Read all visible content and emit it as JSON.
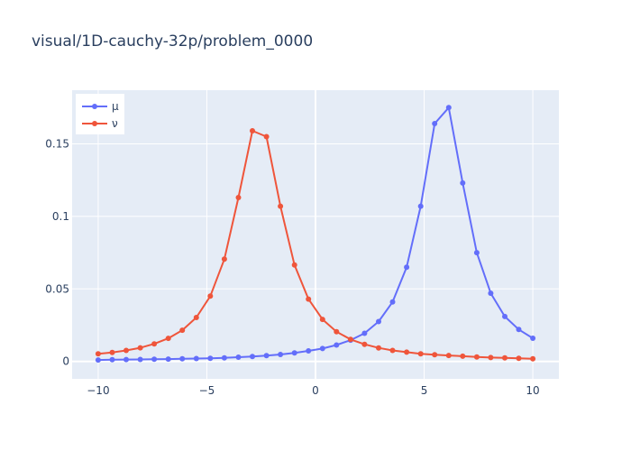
{
  "chart_data": {
    "type": "line",
    "title": "visual/1D-cauchy-32p/problem_0000",
    "xlabel": "",
    "ylabel": "",
    "xlim": [
      -11.2,
      11.2
    ],
    "ylim": [
      -0.012,
      0.187
    ],
    "x_ticks": [
      -10,
      -5,
      0,
      5,
      10
    ],
    "x_tick_labels": [
      "−10",
      "−5",
      "0",
      "5",
      "10"
    ],
    "y_ticks": [
      0,
      0.05,
      0.1,
      0.15
    ],
    "y_tick_labels": [
      "0",
      "0.05",
      "0.1",
      "0.15"
    ],
    "grid": true,
    "legend_position": "top-left",
    "x": [
      -10,
      -9.355,
      -8.71,
      -8.065,
      -7.419,
      -6.774,
      -6.129,
      -5.484,
      -4.839,
      -4.194,
      -3.548,
      -2.903,
      -2.258,
      -1.613,
      -0.968,
      -0.323,
      0.323,
      0.968,
      1.613,
      2.258,
      2.903,
      3.548,
      4.194,
      4.839,
      5.484,
      6.129,
      6.774,
      7.419,
      8.065,
      8.71,
      9.355,
      10
    ],
    "series": [
      {
        "name": "μ",
        "color": "#636efa",
        "values": [
          0.001,
          0.0012,
          0.0013,
          0.0014,
          0.0015,
          0.0016,
          0.0018,
          0.002,
          0.0022,
          0.0025,
          0.0029,
          0.0034,
          0.004,
          0.0048,
          0.0059,
          0.0073,
          0.0089,
          0.0113,
          0.0147,
          0.0194,
          0.0275,
          0.041,
          0.065,
          0.107,
          0.164,
          0.175,
          0.123,
          0.075,
          0.047,
          0.031,
          0.022,
          0.016
        ]
      },
      {
        "name": "ν",
        "color": "#ef553b",
        "values": [
          0.0052,
          0.0062,
          0.0076,
          0.0094,
          0.0121,
          0.0159,
          0.0215,
          0.0303,
          0.045,
          0.0705,
          0.113,
          0.159,
          0.155,
          0.107,
          0.0665,
          0.043,
          0.029,
          0.0205,
          0.0152,
          0.0118,
          0.0093,
          0.0076,
          0.0064,
          0.0053,
          0.0046,
          0.0041,
          0.0036,
          0.0031,
          0.0027,
          0.0024,
          0.0021,
          0.0018
        ]
      }
    ]
  }
}
